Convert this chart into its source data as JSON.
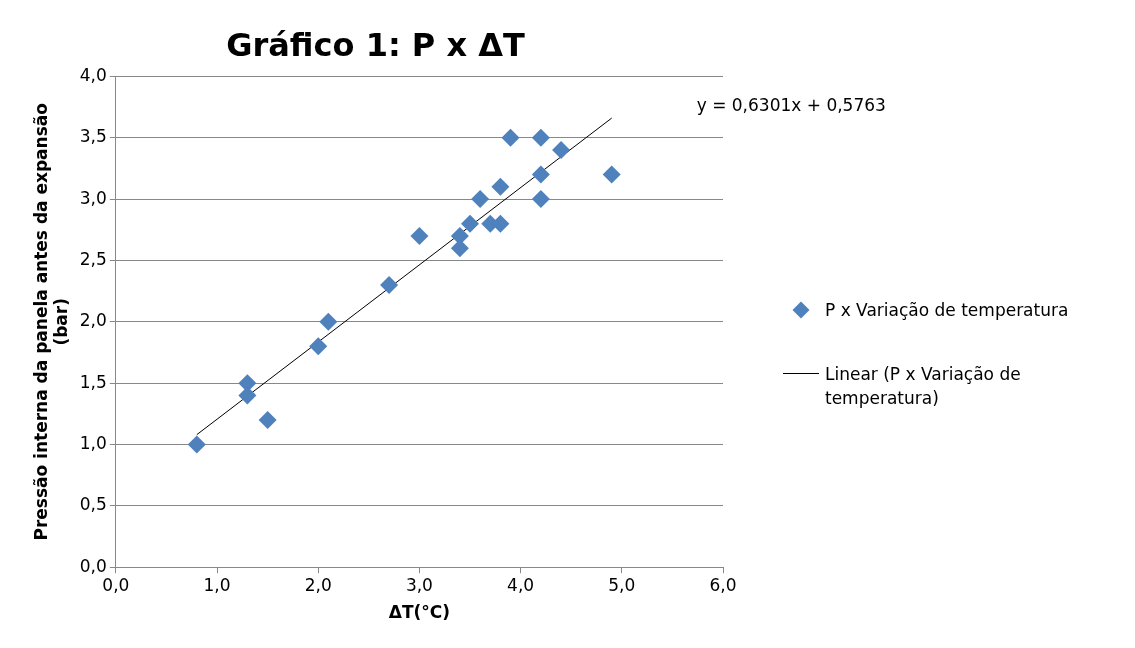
{
  "chart_data": {
    "type": "scatter",
    "title": "Gráfico 1: P x ΔT",
    "xlabel": "ΔT(°C)",
    "ylabel": "Pressão interna da panela antes da expansão (bar)",
    "series": [
      {
        "name": "P x Variação de temperatura",
        "color": "#4f81bd",
        "marker": "diamond",
        "x": [
          0.8,
          1.3,
          1.3,
          1.5,
          2.0,
          2.1,
          2.7,
          3.0,
          3.4,
          3.4,
          3.5,
          3.6,
          3.7,
          3.8,
          3.8,
          3.9,
          4.2,
          4.2,
          4.2,
          4.4,
          4.9
        ],
        "values": [
          1.0,
          1.5,
          1.4,
          1.2,
          1.8,
          2.0,
          2.3,
          2.7,
          2.7,
          2.6,
          2.8,
          3.0,
          2.8,
          2.8,
          3.1,
          3.5,
          3.5,
          3.2,
          3.0,
          3.4,
          3.2
        ]
      },
      {
        "name": "Linear (P x Variação de temperatura)",
        "type": "line",
        "color": "#000000",
        "marker": "none",
        "x": [
          0.8,
          4.9
        ],
        "values": [
          1.08,
          3.66
        ]
      }
    ],
    "annotations": [
      "y = 0,6301x + 0,5763"
    ],
    "xlim": [
      0,
      6
    ],
    "xticks": [
      {
        "value": 0,
        "label": "0,0"
      },
      {
        "value": 1,
        "label": "1,0"
      },
      {
        "value": 2,
        "label": "2,0"
      },
      {
        "value": 3,
        "label": "3,0"
      },
      {
        "value": 4,
        "label": "4,0"
      },
      {
        "value": 5,
        "label": "5,0"
      },
      {
        "value": 6,
        "label": "6,0"
      }
    ],
    "ylim": [
      0,
      4
    ],
    "yticks": [
      {
        "value": 0,
        "label": "0,0"
      },
      {
        "value": 0.5,
        "label": "0,5"
      },
      {
        "value": 1,
        "label": "1,0"
      },
      {
        "value": 1.5,
        "label": "1,5"
      },
      {
        "value": 2,
        "label": "2,0"
      },
      {
        "value": 2.5,
        "label": "2,5"
      },
      {
        "value": 3,
        "label": "3,0"
      },
      {
        "value": 3.5,
        "label": "3,5"
      },
      {
        "value": 4,
        "label": "4,0"
      }
    ],
    "grid": "y",
    "legend": "right"
  }
}
